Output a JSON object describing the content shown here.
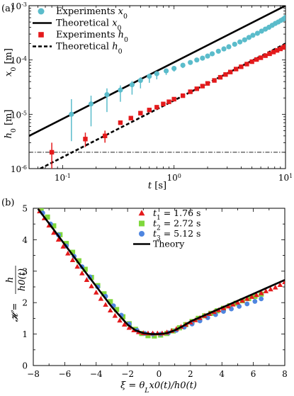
{
  "chart_data": [
    {
      "panel_label": "(a)",
      "type": "scatter",
      "xscale": "log",
      "yscale": "log",
      "xlim": [
        0.05,
        10
      ],
      "ylim": [
        1e-06,
        0.001
      ],
      "xticks": [
        0.1,
        1,
        10
      ],
      "yticks": [
        1e-06,
        1e-05,
        0.0001,
        0.001
      ],
      "xlabel_italic": "t",
      "xlabel_rest": " [s]",
      "ylabel_top_italic": "x",
      "ylabel_top_sub": "0",
      "ylabel_top_rest": " [m]",
      "ylabel_bottom_italic": "h",
      "ylabel_bottom_sub": "0",
      "ylabel_bottom_rest": " [m]",
      "legend": {
        "placement": "top-left",
        "entries": [
          {
            "text": "Experiments ",
            "var": "x",
            "sub": "0",
            "marker": "circle",
            "color": "#5BBCCB"
          },
          {
            "text": "Theoretical ",
            "var": "x",
            "sub": "0",
            "marker": "solid",
            "color": "#000000"
          },
          {
            "text": "Experiments ",
            "var": "h",
            "sub": "0",
            "marker": "square",
            "color": "#E41A1C"
          },
          {
            "text": "Theoretical ",
            "var": "h",
            "sub": "0",
            "marker": "dashed",
            "color": "#000000"
          }
        ]
      },
      "series": [
        {
          "name": "Experiments x0",
          "style": "circle",
          "color": "#5BBCCB",
          "x": [
            0.12,
            0.18,
            0.25,
            0.33,
            0.42,
            0.5,
            0.6,
            0.7,
            0.85,
            1.0,
            1.2,
            1.4,
            1.6,
            1.8,
            2.0,
            2.2,
            2.5,
            2.8,
            3.1,
            3.5,
            3.9,
            4.3,
            4.7,
            5.1,
            5.6,
            6.1,
            6.6,
            7.1,
            7.6,
            8.1,
            8.6,
            9.1,
            9.6,
            10.0
          ],
          "y": [
            1e-05,
            1.55e-05,
            2.3e-05,
            2.8e-05,
            3.5e-05,
            4.2e-05,
            5e-05,
            5.6e-05,
            6.3e-05,
            7e-05,
            8e-05,
            9e-05,
            0.0001,
            0.000108,
            0.000118,
            0.00013,
            0.000145,
            0.00016,
            0.000175,
            0.000195,
            0.000215,
            0.000235,
            0.00026,
            0.000285,
            0.00031,
            0.00034,
            0.00037,
            0.0004,
            0.000435,
            0.00047,
            0.0005,
            0.000535,
            0.00057,
            0.00061
          ],
          "err_lo": [
            3.2e-06,
            6e-06,
            1.1e-05,
            1.7e-05,
            2.3e-05,
            3e-05,
            3.8e-05,
            4.4e-05,
            5.3e-05,
            6.1e-05,
            7.1e-05
          ],
          "err_hi": [
            1.9e-05,
            2.2e-05,
            3e-05,
            3.4e-05,
            4.1e-05,
            4.8e-05,
            5.6e-05,
            6.2e-05,
            7e-05,
            7.7e-05,
            8.8e-05
          ]
        },
        {
          "name": "Theoretical x0",
          "style": "solid",
          "color": "#000000",
          "x": [
            0.05,
            10
          ],
          "y": [
            4e-06,
            0.001
          ]
        },
        {
          "name": "Experiments h0",
          "style": "square",
          "color": "#E41A1C",
          "x": [
            0.08,
            0.16,
            0.24,
            0.33,
            0.41,
            0.5,
            0.6,
            0.7,
            0.8,
            0.9,
            1.0,
            1.2,
            1.4,
            1.6,
            1.8,
            2.0,
            2.3,
            2.6,
            2.9,
            3.2,
            3.6,
            4.0,
            4.5,
            5.0,
            5.5,
            6.0,
            6.6,
            7.2,
            7.8,
            8.4,
            9.0,
            9.6,
            10.0
          ],
          "y": [
            2e-06,
            3.5e-06,
            4e-06,
            7e-06,
            8.5e-06,
            1.05e-05,
            1.2e-05,
            1.35e-05,
            1.55e-05,
            1.7e-05,
            1.9e-05,
            2.2e-05,
            2.6e-05,
            2.95e-05,
            3.3e-05,
            3.7e-05,
            4.2e-05,
            4.8e-05,
            5.4e-05,
            6e-05,
            6.8e-05,
            7.5e-05,
            8.4e-05,
            9.3e-05,
            0.000102,
            0.00011,
            0.00012,
            0.00013,
            0.00014,
            0.00015,
            0.00016,
            0.00017,
            0.000178
          ],
          "err_lo": [
            1e-06,
            2.5e-06,
            3e-06
          ],
          "err_hi": [
            3e-06,
            4.6e-06,
            5e-06
          ]
        },
        {
          "name": "Theoretical h0",
          "style": "dashed",
          "color": "#000000",
          "x": [
            0.063,
            10
          ],
          "y": [
            1e-06,
            0.0002
          ]
        },
        {
          "name": "reference",
          "style": "dashdot",
          "color": "#000000",
          "x": [
            0.05,
            10
          ],
          "y": [
            2e-06,
            2e-06
          ]
        }
      ]
    },
    {
      "panel_label": "(b)",
      "type": "scatter",
      "xlim": [
        -8,
        8
      ],
      "ylim": [
        0,
        5
      ],
      "xticks": [
        -8,
        -6,
        -4,
        -2,
        0,
        2,
        4,
        6,
        8
      ],
      "yticks": [
        0,
        1,
        2,
        3,
        4,
        5
      ],
      "xlabel": "ξ = θ",
      "xlabel_sub": "L",
      "xlabel_rest": "x0(t)/h0(t)",
      "ylabel_lhs": "𝓗 =",
      "ylabel_num": "h",
      "ylabel_den": "h0(t)",
      "legend": {
        "placement": "top-center",
        "entries": [
          {
            "var": "t",
            "sub": "1",
            "text": " = 1.76 s",
            "marker": "triangle",
            "color": "#E41A1C"
          },
          {
            "var": "t",
            "sub": "2",
            "text": " = 2.72 s",
            "marker": "square",
            "color": "#7FD83C"
          },
          {
            "var": "t",
            "sub": "3",
            "text": " = 5.12 s",
            "marker": "circle",
            "color": "#4F86E0"
          },
          {
            "var": "",
            "sub": "",
            "text": "Theory",
            "marker": "solid",
            "color": "#000000"
          }
        ]
      },
      "series": [
        {
          "name": "t1 = 1.76 s",
          "style": "triangle",
          "color": "#E41A1C",
          "x": [
            -7.6,
            -7.3,
            -7.0,
            -6.7,
            -6.4,
            -6.1,
            -5.8,
            -5.5,
            -5.2,
            -4.9,
            -4.6,
            -4.3,
            -4.0,
            -3.7,
            -3.4,
            -3.1,
            -2.8,
            -2.5,
            -2.2,
            -1.9,
            -1.6,
            -1.3,
            -1.0,
            -0.7,
            -0.4,
            -0.1,
            0.2,
            0.5,
            0.8,
            1.1,
            1.4,
            1.7,
            2.0,
            2.3,
            2.6,
            2.9,
            3.2,
            3.5,
            3.8,
            4.1,
            4.4,
            4.7,
            5.0,
            5.3,
            5.6,
            5.9,
            6.2,
            6.5,
            6.8,
            7.1,
            7.4,
            7.7,
            8.0
          ],
          "y": [
            4.9,
            4.68,
            4.45,
            4.22,
            4.0,
            3.78,
            3.56,
            3.35,
            3.14,
            2.93,
            2.72,
            2.52,
            2.32,
            2.12,
            1.93,
            1.75,
            1.58,
            1.43,
            1.3,
            1.2,
            1.12,
            1.06,
            1.03,
            1.02,
            1.02,
            1.02,
            1.02,
            1.05,
            1.1,
            1.16,
            1.23,
            1.3,
            1.37,
            1.44,
            1.51,
            1.58,
            1.64,
            1.7,
            1.76,
            1.82,
            1.88,
            1.94,
            2.0,
            2.06,
            2.12,
            2.18,
            2.24,
            2.3,
            2.36,
            2.42,
            2.48,
            2.56,
            2.65
          ]
        },
        {
          "name": "t2 = 2.72 s",
          "style": "square",
          "color": "#7FD83C",
          "x": [
            -7.5,
            -7.1,
            -6.7,
            -6.3,
            -5.9,
            -5.5,
            -5.1,
            -4.7,
            -4.3,
            -3.9,
            -3.5,
            -3.1,
            -2.7,
            -2.3,
            -1.9,
            -1.5,
            -1.1,
            -0.7,
            -0.3,
            0.1,
            0.5,
            0.9,
            1.3,
            1.7,
            2.1,
            2.5,
            2.9,
            3.3,
            3.7,
            4.1,
            4.5,
            4.9,
            5.3,
            5.7,
            6.1,
            6.5
          ],
          "y": [
            4.98,
            4.72,
            4.44,
            4.16,
            3.88,
            3.6,
            3.33,
            3.06,
            2.8,
            2.54,
            2.28,
            2.03,
            1.78,
            1.55,
            1.33,
            1.15,
            1.02,
            0.95,
            0.94,
            0.97,
            1.02,
            1.1,
            1.2,
            1.3,
            1.4,
            1.5,
            1.58,
            1.66,
            1.74,
            1.82,
            1.9,
            1.98,
            2.06,
            2.13,
            2.2,
            2.27
          ]
        },
        {
          "name": "t3 = 5.12 s",
          "style": "circle",
          "color": "#4F86E0",
          "x": [
            -7.4,
            -6.9,
            -6.4,
            -5.9,
            -5.4,
            -4.9,
            -4.4,
            -3.9,
            -3.4,
            -2.9,
            -2.4,
            -1.9,
            -1.4,
            -0.9,
            -0.4,
            0.1,
            0.6,
            1.1,
            1.6,
            2.1,
            2.6,
            3.1,
            3.6,
            4.1,
            4.6,
            5.1,
            5.6,
            6.1,
            6.5
          ],
          "y": [
            4.85,
            4.5,
            4.15,
            3.8,
            3.47,
            3.14,
            2.82,
            2.5,
            2.2,
            1.9,
            1.6,
            1.32,
            1.12,
            1.02,
            1.0,
            1.0,
            1.04,
            1.12,
            1.22,
            1.32,
            1.42,
            1.52,
            1.62,
            1.72,
            1.8,
            1.88,
            1.96,
            2.04,
            2.12
          ]
        },
        {
          "name": "Theory",
          "style": "solid",
          "color": "#000000",
          "x": [
            -7.7,
            -7.0,
            -6.0,
            -5.0,
            -4.0,
            -3.0,
            -2.0,
            -1.5,
            -1.0,
            -0.5,
            0.0,
            0.5,
            1.0,
            1.5,
            2.0,
            3.0,
            4.0,
            5.0,
            6.0,
            7.0,
            8.0
          ],
          "y": [
            4.98,
            4.52,
            3.85,
            3.18,
            2.52,
            1.86,
            1.3,
            1.12,
            1.03,
            1.0,
            1.0,
            1.03,
            1.12,
            1.25,
            1.4,
            1.62,
            1.84,
            2.06,
            2.28,
            2.5,
            2.72
          ]
        }
      ]
    }
  ]
}
